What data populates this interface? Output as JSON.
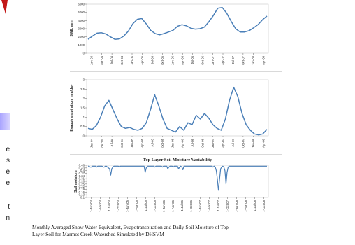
{
  "side_fragments": [
    "e",
    "s",
    "e",
    "e",
    "t",
    "n"
  ],
  "caption_line1": "Monthly Averaged Snow Water Equivalent, Evapotranspiration and Daily Soil Moisture  of Top",
  "caption_line2": "Layer Soil for Marmot Creek Watershed Simulated by DHSVM",
  "colors": {
    "series": "#4a7fb8",
    "edge_accent": "#c21717"
  },
  "chart_data": [
    {
      "type": "line",
      "title": "",
      "ylabel": "SWE, mm",
      "ylim": [
        0,
        6000
      ],
      "yticks": [
        0,
        1000,
        2000,
        3000,
        4000,
        5000,
        6000
      ],
      "xticks": [
        "Jan-04",
        "Apr-04",
        "Jul-04",
        "Oct-04",
        "Jan-05",
        "Apr-05",
        "Jul-05",
        "Oct-05",
        "Jan-06",
        "Apr-06",
        "Jul-06",
        "Oct-06",
        "Jan-07",
        "Apr-07",
        "Jul-07",
        "Oct-07",
        "Jan-08",
        "Apr-08"
      ],
      "series": [
        {
          "values": [
            1700,
            2100,
            2450,
            2500,
            2350,
            2000,
            1700,
            1750,
            2100,
            2700,
            3600,
            4150,
            4250,
            3600,
            2800,
            2400,
            2250,
            2400,
            2600,
            2800,
            3300,
            3500,
            3350,
            3050,
            2950,
            3000,
            3200,
            3850,
            4600,
            5500,
            5600,
            4900,
            3900,
            3000,
            2600,
            2600,
            2750,
            3100,
            3500,
            4100,
            4550
          ]
        }
      ]
    },
    {
      "type": "line",
      "title": "",
      "ylabel": "Evapotranspiration, mm/day",
      "ylim": [
        0,
        3
      ],
      "yticks": [
        0,
        0.5,
        1,
        1.5,
        2,
        2.5,
        3
      ],
      "xticks": [
        "Jan-04",
        "Apr-04",
        "Jul-04",
        "Oct-04",
        "Jan-05",
        "Apr-05",
        "Jul-05",
        "Oct-05",
        "Jan-06",
        "Apr-06",
        "Jul-06",
        "Oct-06",
        "Jan-07",
        "Apr-07",
        "Jul-07",
        "Oct-07",
        "Jan-08",
        "Apr-08"
      ],
      "series": [
        {
          "values": [
            0.4,
            0.35,
            0.55,
            1.0,
            1.6,
            1.9,
            1.4,
            0.9,
            0.5,
            0.4,
            0.45,
            0.35,
            0.3,
            0.4,
            0.7,
            1.4,
            2.2,
            1.6,
            0.9,
            0.4,
            0.3,
            0.2,
            0.5,
            0.3,
            0.7,
            0.6,
            1.1,
            0.9,
            1.2,
            0.95,
            0.6,
            0.4,
            0.3,
            0.9,
            1.9,
            2.6,
            2.1,
            1.2,
            0.6,
            0.3,
            0.1,
            0.05,
            0.1,
            0.35
          ]
        }
      ]
    },
    {
      "type": "line",
      "title": "Top Layer Soil Moisture Variability",
      "ylabel": "Soil moisture",
      "ylim": [
        0.1,
        0.46
      ],
      "yticks": [
        0.1,
        0.13,
        0.16,
        0.19,
        0.22,
        0.25,
        0.28,
        0.31,
        0.34,
        0.37,
        0.4,
        0.43,
        0.46
      ],
      "xticks": [
        "1-Jan-04",
        "1-Apr-04",
        "1-Jul-04",
        "1-Oct-04",
        "1-Jan-05",
        "1-Apr-05",
        "1-Jul-05",
        "1-Oct-05",
        "1-Jan-06",
        "1-Apr-06",
        "1-Jul-06",
        "1-Oct-06",
        "1-Jan-07",
        "1-Apr-07",
        "1-Jul-07",
        "1-Oct-07",
        "1-Jan-08",
        "1-Apr-08",
        "1-Jul-08",
        "1-Oct-08"
      ],
      "series": [
        {
          "values": [
            0.45,
            0.45,
            0.44,
            0.44,
            0.45,
            0.45,
            0.45,
            0.45,
            0.44,
            0.45,
            0.45,
            0.45,
            0.45,
            0.45,
            0.44,
            0.44,
            0.45,
            0.45,
            0.44,
            0.43,
            0.42,
            0.35,
            0.42,
            0.44,
            0.45,
            0.45,
            0.45,
            0.45,
            0.45,
            0.44,
            0.45,
            0.45,
            0.45,
            0.45,
            0.45,
            0.45,
            0.45,
            0.45,
            0.45,
            0.45,
            0.45,
            0.45,
            0.45,
            0.45,
            0.45,
            0.45,
            0.45,
            0.45,
            0.45,
            0.45,
            0.45,
            0.45,
            0.45,
            0.38,
            0.43,
            0.45,
            0.45,
            0.45,
            0.45,
            0.45,
            0.45,
            0.45,
            0.44,
            0.45,
            0.45,
            0.45,
            0.45,
            0.45,
            0.45,
            0.44,
            0.45,
            0.45,
            0.45,
            0.45,
            0.42,
            0.44,
            0.45,
            0.45,
            0.45,
            0.44,
            0.45,
            0.45,
            0.45,
            0.45,
            0.42,
            0.44,
            0.45,
            0.44,
            0.41,
            0.45,
            0.45,
            0.45,
            0.45,
            0.45,
            0.45,
            0.45,
            0.45,
            0.45,
            0.45,
            0.45,
            0.45,
            0.45,
            0.45,
            0.45,
            0.45,
            0.45,
            0.45,
            0.45,
            0.45,
            0.45,
            0.45,
            0.45,
            0.45,
            0.45,
            0.45,
            0.45,
            0.44,
            0.45,
            0.44,
            0.4,
            0.3,
            0.18,
            0.3,
            0.42,
            0.44,
            0.45,
            0.44,
            0.4,
            0.25,
            0.38,
            0.44,
            0.45,
            0.45,
            0.45,
            0.45,
            0.45,
            0.45,
            0.45,
            0.45,
            0.45,
            0.45,
            0.45,
            0.45,
            0.45,
            0.45,
            0.45,
            0.45,
            0.45,
            0.45,
            0.45,
            0.45,
            0.45,
            0.45,
            0.45,
            0.45,
            0.45,
            0.45,
            0.45,
            0.45,
            0.45,
            0.45,
            0.45,
            0.45,
            0.45,
            0.45,
            0.45,
            0.45
          ]
        }
      ]
    }
  ]
}
